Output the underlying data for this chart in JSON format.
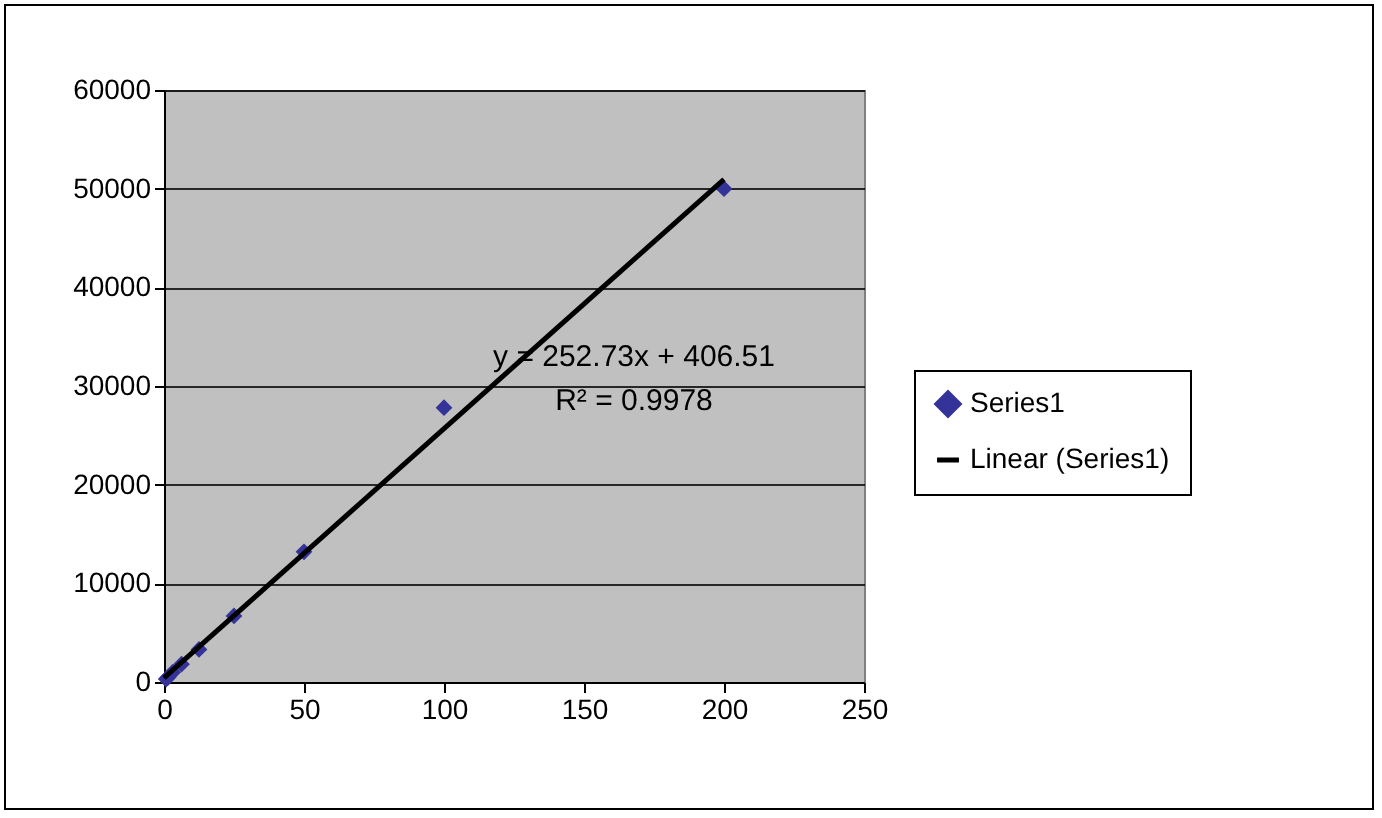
{
  "chart_data": {
    "type": "scatter",
    "x": [
      0.78,
      1.56,
      3.125,
      6.25,
      12.5,
      25,
      50,
      100,
      200
    ],
    "series": [
      {
        "name": "Series1",
        "color": "#333399",
        "marker": "diamond",
        "values": [
          300,
          500,
          1000,
          1800,
          3300,
          6700,
          13200,
          27800,
          50000
        ]
      },
      {
        "name": "Linear (Series1)",
        "type": "line",
        "color": "#000000",
        "x": [
          0,
          200
        ],
        "values": [
          407,
          50950
        ]
      }
    ],
    "xlim": [
      0,
      250
    ],
    "xticks": [
      0,
      50,
      100,
      150,
      200,
      250
    ],
    "ylim": [
      0,
      60000
    ],
    "yticks": [
      0,
      10000,
      20000,
      30000,
      40000,
      50000,
      60000
    ],
    "grid": "y",
    "legend": "right",
    "annotations": [
      "y = 252.73x + 406.51",
      "R² = 0.9978"
    ]
  }
}
